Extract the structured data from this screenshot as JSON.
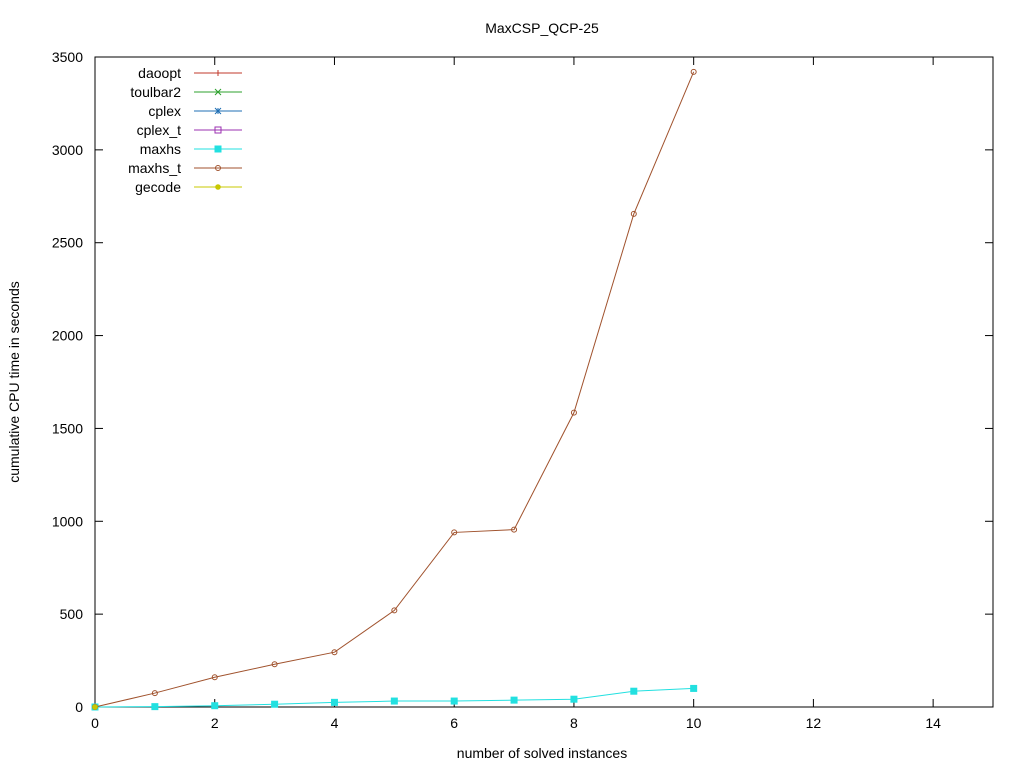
{
  "chart_data": {
    "type": "line",
    "title": "MaxCSP_QCP-25",
    "xlabel": "number of solved instances",
    "ylabel": "cumulative CPU time in seconds",
    "xlim": [
      0,
      15
    ],
    "ylim": [
      0,
      3500
    ],
    "xticks": [
      0,
      2,
      4,
      6,
      8,
      10,
      12,
      14
    ],
    "yticks": [
      0,
      500,
      1000,
      1500,
      2000,
      2500,
      3000,
      3500
    ],
    "grid": false,
    "legend_position": "top-left",
    "series": [
      {
        "name": "daoopt",
        "color": "#c0392b",
        "marker": "plus",
        "points": []
      },
      {
        "name": "toulbar2",
        "color": "#2ca02c",
        "marker": "cross",
        "points": []
      },
      {
        "name": "cplex",
        "color": "#1f6fb4",
        "marker": "star",
        "points": []
      },
      {
        "name": "cplex_t",
        "color": "#9b30b0",
        "marker": "square-open",
        "points": []
      },
      {
        "name": "maxhs",
        "color": "#22e0e0",
        "marker": "square-filled",
        "points": [
          [
            0,
            0
          ],
          [
            1,
            2
          ],
          [
            2,
            7
          ],
          [
            3,
            15
          ],
          [
            4,
            25
          ],
          [
            5,
            32
          ],
          [
            6,
            32
          ],
          [
            7,
            37
          ],
          [
            8,
            42
          ],
          [
            9,
            85
          ],
          [
            10,
            100
          ]
        ]
      },
      {
        "name": "maxhs_t",
        "color": "#a0522d",
        "marker": "circle-open",
        "points": [
          [
            0,
            0
          ],
          [
            1,
            75
          ],
          [
            2,
            160
          ],
          [
            3,
            230
          ],
          [
            4,
            295
          ],
          [
            5,
            520
          ],
          [
            6,
            940
          ],
          [
            7,
            955
          ],
          [
            8,
            1585
          ],
          [
            9,
            2655
          ],
          [
            10,
            3420
          ]
        ]
      },
      {
        "name": "gecode",
        "color": "#c8c800",
        "marker": "circle-filled",
        "points": [
          [
            0,
            0
          ]
        ]
      }
    ]
  }
}
